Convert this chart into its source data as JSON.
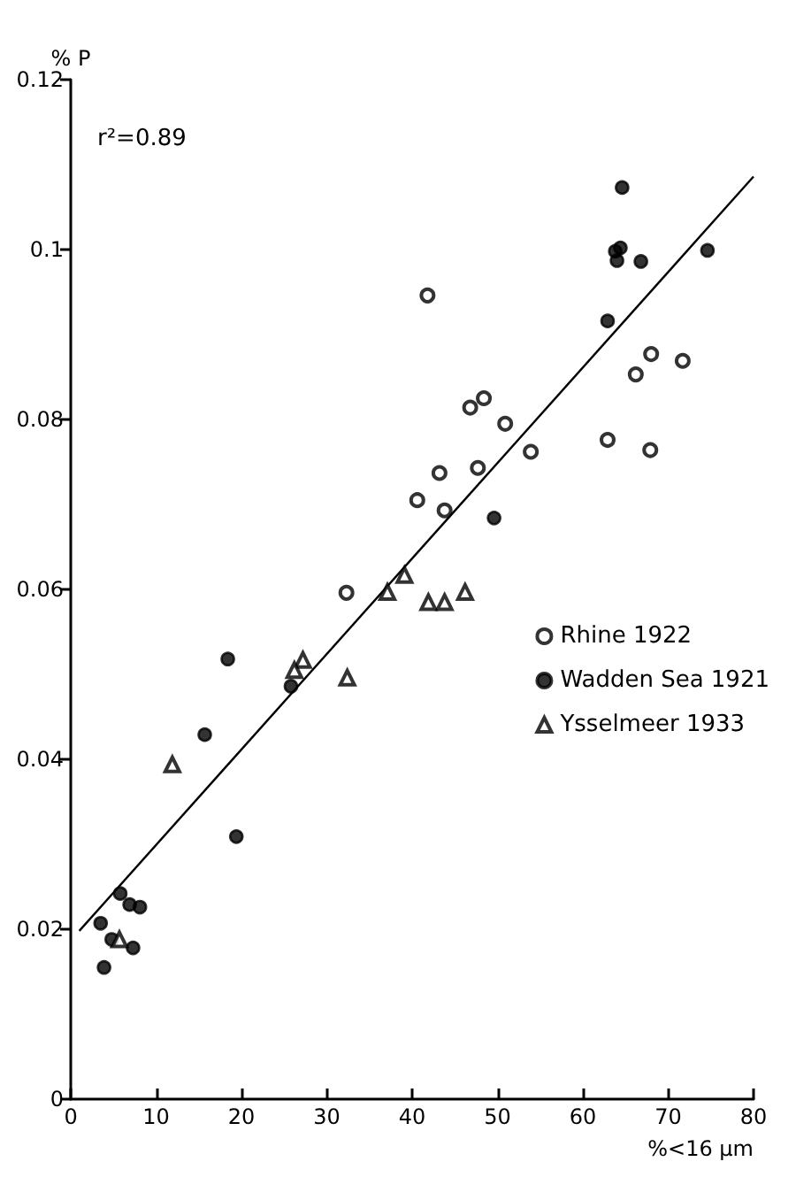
{
  "chart_data": {
    "type": "scatter",
    "xlabel": "%<16 µm",
    "ylabel": "% P",
    "xlim": [
      0,
      80
    ],
    "xticks": [
      0,
      10,
      20,
      30,
      40,
      50,
      60,
      70,
      80
    ],
    "ylim": [
      0,
      0.12
    ],
    "yticks": [
      0,
      0.02,
      0.04,
      0.06,
      0.08,
      0.1,
      0.12
    ],
    "grid": false,
    "legend": "right",
    "annotations": [
      "r²=0.89"
    ],
    "series": [
      {
        "name": "Rhine 1922",
        "color": "#000000",
        "marker": "circle",
        "x": [
          41.8,
          46.8,
          48.4,
          50.9,
          66.2,
          68.0,
          71.7,
          62.9,
          67.9,
          53.9,
          47.7,
          43.2,
          40.6,
          43.8,
          32.3
        ],
        "values": [
          0.0946,
          0.0814,
          0.0825,
          0.0795,
          0.0853,
          0.0877,
          0.0869,
          0.0776,
          0.0764,
          0.0762,
          0.0743,
          0.0737,
          0.0705,
          0.0693,
          0.0596
        ]
      },
      {
        "name": "Wadden Sea 1921",
        "color": "#000000",
        "marker": "circle",
        "x": [
          64.6,
          64.4,
          63.8,
          64.0,
          66.8,
          74.6,
          62.9,
          49.6,
          18.4,
          25.8,
          15.7,
          19.4,
          5.8,
          3.5,
          6.9,
          8.1,
          4.8,
          7.3,
          3.9
        ],
        "values": [
          0.1073,
          0.1002,
          0.0998,
          0.0987,
          0.0986,
          0.0999,
          0.0916,
          0.0684,
          0.0518,
          0.0486,
          0.0429,
          0.0309,
          0.0242,
          0.0207,
          0.0229,
          0.0226,
          0.0188,
          0.0178,
          0.0155
        ]
      },
      {
        "name": "Ysselmeer 1933",
        "color": "#000000",
        "marker": "triangle",
        "x": [
          39.1,
          37.1,
          41.9,
          43.8,
          46.2,
          27.2,
          26.2,
          32.4,
          11.9,
          5.7
        ],
        "values": [
          0.0617,
          0.0597,
          0.0585,
          0.0585,
          0.0597,
          0.0517,
          0.0505,
          0.0496,
          0.0394,
          0.0188
        ]
      },
      {
        "type": "line",
        "color": "#000000",
        "marker": "none",
        "line_style": "solid",
        "x": [
          1,
          80
        ],
        "values": [
          0.0198,
          0.1086
        ]
      }
    ]
  }
}
